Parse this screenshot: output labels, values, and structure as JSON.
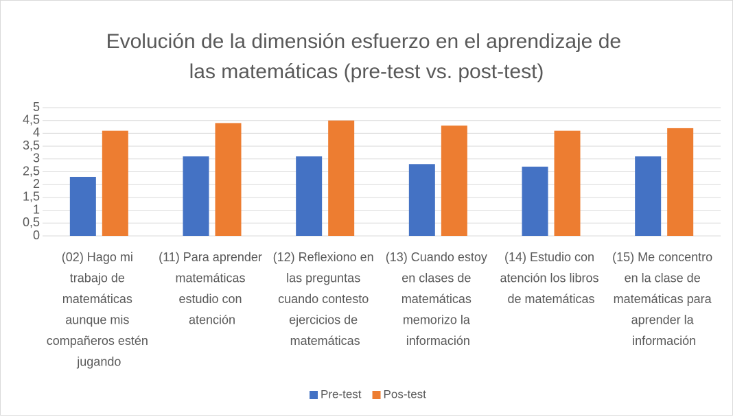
{
  "chart_data": {
    "type": "bar",
    "title": "Evolución de la dimensión esfuerzo en el aprendizaje de las matemáticas (pre-test vs. post-test)",
    "categories": [
      "(02) Hago mi trabajo de matemáticas aunque mis compañeros estén jugando",
      "(11) Para aprender matemáticas estudio con atención",
      "(12) Reflexiono en las preguntas cuando contesto ejercicios de matemáticas",
      "(13) Cuando estoy en clases de matemáticas memorizo la información",
      "(14) Estudio con atención los libros de matemáticas",
      "(15) Me concentro en la clase de matemáticas para aprender la información"
    ],
    "series": [
      {
        "name": "Pre-test",
        "color": "#4472c4",
        "values": [
          2.3,
          3.1,
          3.1,
          2.8,
          2.7,
          3.1
        ]
      },
      {
        "name": "Pos-test",
        "color": "#ed7d31",
        "values": [
          4.1,
          4.4,
          4.5,
          4.3,
          4.1,
          4.2
        ]
      }
    ],
    "ylim": [
      0,
      5
    ],
    "yticks": [
      0,
      {
        "value": 0.5,
        "label": "0,5"
      },
      1,
      {
        "value": 1.5,
        "label": "1,5"
      },
      2,
      {
        "value": 2.5,
        "label": "2,5"
      },
      3,
      {
        "value": 3.5,
        "label": "3,5"
      },
      4,
      {
        "value": 4.5,
        "label": "4,5"
      },
      5
    ],
    "grid": true,
    "legend": "bottom"
  }
}
